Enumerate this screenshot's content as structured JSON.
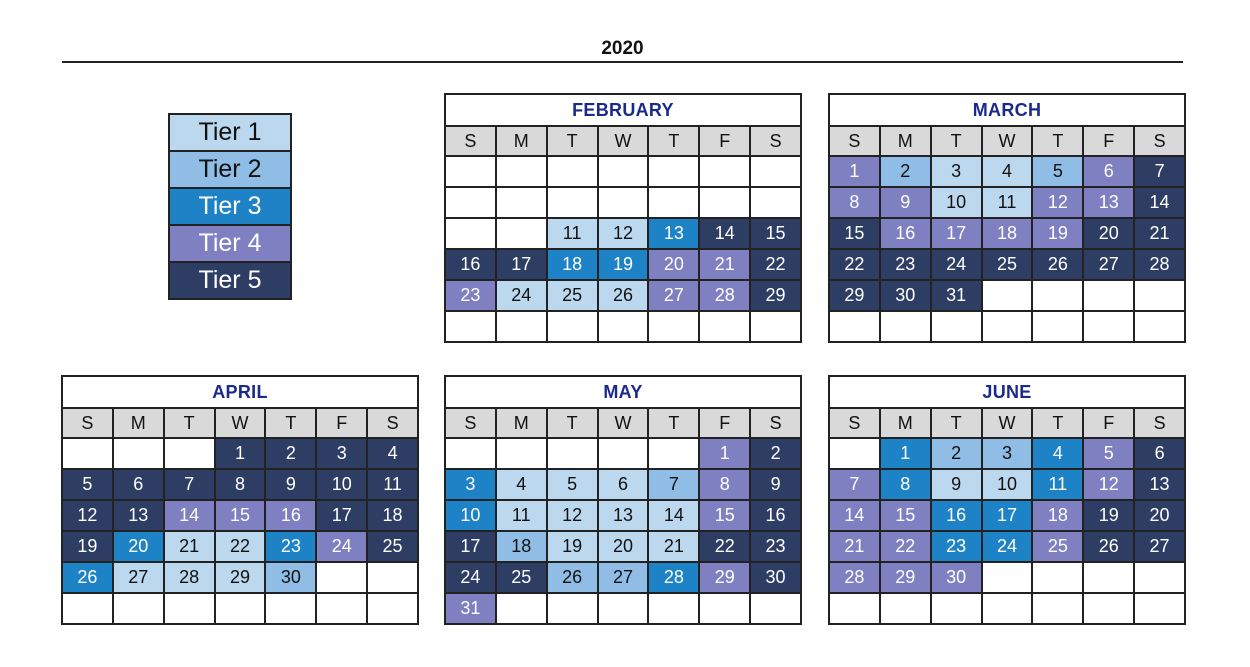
{
  "year": "2020",
  "weekday_headers": [
    "S",
    "M",
    "T",
    "W",
    "T",
    "F",
    "S"
  ],
  "tiers": {
    "0": {
      "bg": "#ffffff",
      "fg": "#111111"
    },
    "1": {
      "bg": "#bcd8ef",
      "fg": "#111111"
    },
    "2": {
      "bg": "#8fbde6",
      "fg": "#111111"
    },
    "3": {
      "bg": "#1e82c6",
      "fg": "#ffffff"
    },
    "4": {
      "bg": "#7e80c2",
      "fg": "#ffffff"
    },
    "5": {
      "bg": "#2e3d63",
      "fg": "#ffffff"
    }
  },
  "legend": [
    {
      "label": "Tier 1",
      "tier": 1
    },
    {
      "label": "Tier 2",
      "tier": 2
    },
    {
      "label": "Tier 3",
      "tier": 3
    },
    {
      "label": "Tier 4",
      "tier": 4
    },
    {
      "label": "Tier 5",
      "tier": 5
    }
  ],
  "months": [
    {
      "name": "FEBRUARY",
      "cells": [
        {
          "d": "",
          "t": 0
        },
        {
          "d": "",
          "t": 0
        },
        {
          "d": "",
          "t": 0
        },
        {
          "d": "",
          "t": 0
        },
        {
          "d": "",
          "t": 0
        },
        {
          "d": "",
          "t": 0
        },
        {
          "d": "",
          "t": 0
        },
        {
          "d": "",
          "t": 0
        },
        {
          "d": "",
          "t": 0
        },
        {
          "d": "",
          "t": 0
        },
        {
          "d": "",
          "t": 0
        },
        {
          "d": "",
          "t": 0
        },
        {
          "d": "",
          "t": 0
        },
        {
          "d": "",
          "t": 0
        },
        {
          "d": "",
          "t": 0
        },
        {
          "d": "",
          "t": 0
        },
        {
          "d": "11",
          "t": 1
        },
        {
          "d": "12",
          "t": 1
        },
        {
          "d": "13",
          "t": 3
        },
        {
          "d": "14",
          "t": 5
        },
        {
          "d": "15",
          "t": 5
        },
        {
          "d": "16",
          "t": 5
        },
        {
          "d": "17",
          "t": 5
        },
        {
          "d": "18",
          "t": 3
        },
        {
          "d": "19",
          "t": 3
        },
        {
          "d": "20",
          "t": 4
        },
        {
          "d": "21",
          "t": 4
        },
        {
          "d": "22",
          "t": 5
        },
        {
          "d": "23",
          "t": 4
        },
        {
          "d": "24",
          "t": 1
        },
        {
          "d": "25",
          "t": 1
        },
        {
          "d": "26",
          "t": 1
        },
        {
          "d": "27",
          "t": 4
        },
        {
          "d": "28",
          "t": 4
        },
        {
          "d": "29",
          "t": 5
        },
        {
          "d": "",
          "t": 0
        },
        {
          "d": "",
          "t": 0
        },
        {
          "d": "",
          "t": 0
        },
        {
          "d": "",
          "t": 0
        },
        {
          "d": "",
          "t": 0
        },
        {
          "d": "",
          "t": 0
        },
        {
          "d": "",
          "t": 0
        }
      ]
    },
    {
      "name": "MARCH",
      "cells": [
        {
          "d": "1",
          "t": 4
        },
        {
          "d": "2",
          "t": 2
        },
        {
          "d": "3",
          "t": 1
        },
        {
          "d": "4",
          "t": 1
        },
        {
          "d": "5",
          "t": 2
        },
        {
          "d": "6",
          "t": 4
        },
        {
          "d": "7",
          "t": 5
        },
        {
          "d": "8",
          "t": 4
        },
        {
          "d": "9",
          "t": 4
        },
        {
          "d": "10",
          "t": 1
        },
        {
          "d": "11",
          "t": 1
        },
        {
          "d": "12",
          "t": 4
        },
        {
          "d": "13",
          "t": 4
        },
        {
          "d": "14",
          "t": 5
        },
        {
          "d": "15",
          "t": 5
        },
        {
          "d": "16",
          "t": 4
        },
        {
          "d": "17",
          "t": 4
        },
        {
          "d": "18",
          "t": 4
        },
        {
          "d": "19",
          "t": 4
        },
        {
          "d": "20",
          "t": 5
        },
        {
          "d": "21",
          "t": 5
        },
        {
          "d": "22",
          "t": 5
        },
        {
          "d": "23",
          "t": 5
        },
        {
          "d": "24",
          "t": 5
        },
        {
          "d": "25",
          "t": 5
        },
        {
          "d": "26",
          "t": 5
        },
        {
          "d": "27",
          "t": 5
        },
        {
          "d": "28",
          "t": 5
        },
        {
          "d": "29",
          "t": 5
        },
        {
          "d": "30",
          "t": 5
        },
        {
          "d": "31",
          "t": 5
        },
        {
          "d": "",
          "t": 0
        },
        {
          "d": "",
          "t": 0
        },
        {
          "d": "",
          "t": 0
        },
        {
          "d": "",
          "t": 0
        },
        {
          "d": "",
          "t": 0
        },
        {
          "d": "",
          "t": 0
        },
        {
          "d": "",
          "t": 0
        },
        {
          "d": "",
          "t": 0
        },
        {
          "d": "",
          "t": 0
        },
        {
          "d": "",
          "t": 0
        },
        {
          "d": "",
          "t": 0
        }
      ]
    },
    {
      "name": "APRIL",
      "cells": [
        {
          "d": "",
          "t": 0
        },
        {
          "d": "",
          "t": 0
        },
        {
          "d": "",
          "t": 0
        },
        {
          "d": "1",
          "t": 5
        },
        {
          "d": "2",
          "t": 5
        },
        {
          "d": "3",
          "t": 5
        },
        {
          "d": "4",
          "t": 5
        },
        {
          "d": "5",
          "t": 5
        },
        {
          "d": "6",
          "t": 5
        },
        {
          "d": "7",
          "t": 5
        },
        {
          "d": "8",
          "t": 5
        },
        {
          "d": "9",
          "t": 5
        },
        {
          "d": "10",
          "t": 5
        },
        {
          "d": "11",
          "t": 5
        },
        {
          "d": "12",
          "t": 5
        },
        {
          "d": "13",
          "t": 5
        },
        {
          "d": "14",
          "t": 4
        },
        {
          "d": "15",
          "t": 4
        },
        {
          "d": "16",
          "t": 4
        },
        {
          "d": "17",
          "t": 5
        },
        {
          "d": "18",
          "t": 5
        },
        {
          "d": "19",
          "t": 5
        },
        {
          "d": "20",
          "t": 3
        },
        {
          "d": "21",
          "t": 1
        },
        {
          "d": "22",
          "t": 1
        },
        {
          "d": "23",
          "t": 3
        },
        {
          "d": "24",
          "t": 4
        },
        {
          "d": "25",
          "t": 5
        },
        {
          "d": "26",
          "t": 3
        },
        {
          "d": "27",
          "t": 1
        },
        {
          "d": "28",
          "t": 1
        },
        {
          "d": "29",
          "t": 1
        },
        {
          "d": "30",
          "t": 2
        },
        {
          "d": "",
          "t": 0
        },
        {
          "d": "",
          "t": 0
        },
        {
          "d": "",
          "t": 0
        },
        {
          "d": "",
          "t": 0
        },
        {
          "d": "",
          "t": 0
        },
        {
          "d": "",
          "t": 0
        },
        {
          "d": "",
          "t": 0
        },
        {
          "d": "",
          "t": 0
        },
        {
          "d": "",
          "t": 0
        }
      ]
    },
    {
      "name": "MAY",
      "cells": [
        {
          "d": "",
          "t": 0
        },
        {
          "d": "",
          "t": 0
        },
        {
          "d": "",
          "t": 0
        },
        {
          "d": "",
          "t": 0
        },
        {
          "d": "",
          "t": 0
        },
        {
          "d": "1",
          "t": 4
        },
        {
          "d": "2",
          "t": 5
        },
        {
          "d": "3",
          "t": 3
        },
        {
          "d": "4",
          "t": 1
        },
        {
          "d": "5",
          "t": 1
        },
        {
          "d": "6",
          "t": 1
        },
        {
          "d": "7",
          "t": 2
        },
        {
          "d": "8",
          "t": 4
        },
        {
          "d": "9",
          "t": 5
        },
        {
          "d": "10",
          "t": 3
        },
        {
          "d": "11",
          "t": 1
        },
        {
          "d": "12",
          "t": 1
        },
        {
          "d": "13",
          "t": 1
        },
        {
          "d": "14",
          "t": 1
        },
        {
          "d": "15",
          "t": 4
        },
        {
          "d": "16",
          "t": 5
        },
        {
          "d": "17",
          "t": 5
        },
        {
          "d": "18",
          "t": 2
        },
        {
          "d": "19",
          "t": 1
        },
        {
          "d": "20",
          "t": 1
        },
        {
          "d": "21",
          "t": 1
        },
        {
          "d": "22",
          "t": 5
        },
        {
          "d": "23",
          "t": 5
        },
        {
          "d": "24",
          "t": 5
        },
        {
          "d": "25",
          "t": 5
        },
        {
          "d": "26",
          "t": 2
        },
        {
          "d": "27",
          "t": 2
        },
        {
          "d": "28",
          "t": 3
        },
        {
          "d": "29",
          "t": 4
        },
        {
          "d": "30",
          "t": 5
        },
        {
          "d": "31",
          "t": 4
        },
        {
          "d": "",
          "t": 0
        },
        {
          "d": "",
          "t": 0
        },
        {
          "d": "",
          "t": 0
        },
        {
          "d": "",
          "t": 0
        },
        {
          "d": "",
          "t": 0
        },
        {
          "d": "",
          "t": 0
        }
      ]
    },
    {
      "name": "JUNE",
      "cells": [
        {
          "d": "",
          "t": 0
        },
        {
          "d": "1",
          "t": 3
        },
        {
          "d": "2",
          "t": 2
        },
        {
          "d": "3",
          "t": 2
        },
        {
          "d": "4",
          "t": 3
        },
        {
          "d": "5",
          "t": 4
        },
        {
          "d": "6",
          "t": 5
        },
        {
          "d": "7",
          "t": 4
        },
        {
          "d": "8",
          "t": 3
        },
        {
          "d": "9",
          "t": 1
        },
        {
          "d": "10",
          "t": 1
        },
        {
          "d": "11",
          "t": 3
        },
        {
          "d": "12",
          "t": 4
        },
        {
          "d": "13",
          "t": 5
        },
        {
          "d": "14",
          "t": 4
        },
        {
          "d": "15",
          "t": 4
        },
        {
          "d": "16",
          "t": 3
        },
        {
          "d": "17",
          "t": 3
        },
        {
          "d": "18",
          "t": 4
        },
        {
          "d": "19",
          "t": 5
        },
        {
          "d": "20",
          "t": 5
        },
        {
          "d": "21",
          "t": 4
        },
        {
          "d": "22",
          "t": 4
        },
        {
          "d": "23",
          "t": 3
        },
        {
          "d": "24",
          "t": 3
        },
        {
          "d": "25",
          "t": 4
        },
        {
          "d": "26",
          "t": 5
        },
        {
          "d": "27",
          "t": 5
        },
        {
          "d": "28",
          "t": 4
        },
        {
          "d": "29",
          "t": 4
        },
        {
          "d": "30",
          "t": 4
        },
        {
          "d": "",
          "t": 0
        },
        {
          "d": "",
          "t": 0
        },
        {
          "d": "",
          "t": 0
        },
        {
          "d": "",
          "t": 0
        },
        {
          "d": "",
          "t": 0
        },
        {
          "d": "",
          "t": 0
        },
        {
          "d": "",
          "t": 0
        },
        {
          "d": "",
          "t": 0
        },
        {
          "d": "",
          "t": 0
        },
        {
          "d": "",
          "t": 0
        },
        {
          "d": "",
          "t": 0
        }
      ]
    }
  ]
}
